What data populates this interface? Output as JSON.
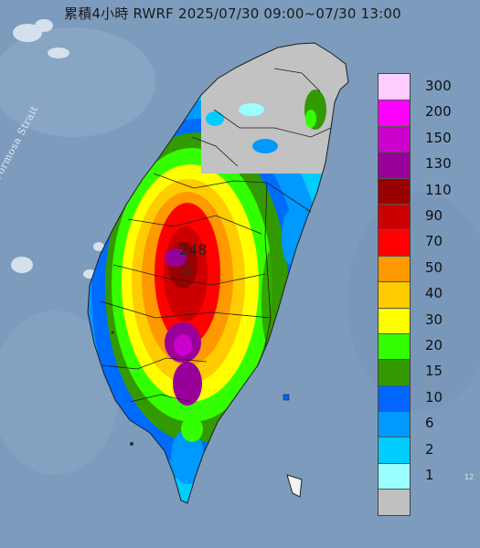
{
  "title": "累積4小時 RWRF 2025/07/30 09:00~07/30 13:00",
  "strait_label": "Formosa Strait",
  "max_label": "248",
  "edge_label": "12",
  "legend": {
    "items": [
      {
        "label": "300",
        "color": "#ffccff"
      },
      {
        "label": "200",
        "color": "#ff00ff"
      },
      {
        "label": "150",
        "color": "#cc00cc"
      },
      {
        "label": "130",
        "color": "#990099"
      },
      {
        "label": "110",
        "color": "#990000"
      },
      {
        "label": "90",
        "color": "#cc0000"
      },
      {
        "label": "70",
        "color": "#ff0000"
      },
      {
        "label": "50",
        "color": "#ff9900"
      },
      {
        "label": "40",
        "color": "#ffcc00"
      },
      {
        "label": "30",
        "color": "#ffff00"
      },
      {
        "label": "20",
        "color": "#33ff00"
      },
      {
        "label": "15",
        "color": "#339900"
      },
      {
        "label": "10",
        "color": "#0066ff"
      },
      {
        "label": "6",
        "color": "#0099ff"
      },
      {
        "label": "2",
        "color": "#00ccff"
      },
      {
        "label": "1",
        "color": "#99ffff"
      },
      {
        "label": "",
        "color": "#c0c0c0"
      }
    ]
  }
}
